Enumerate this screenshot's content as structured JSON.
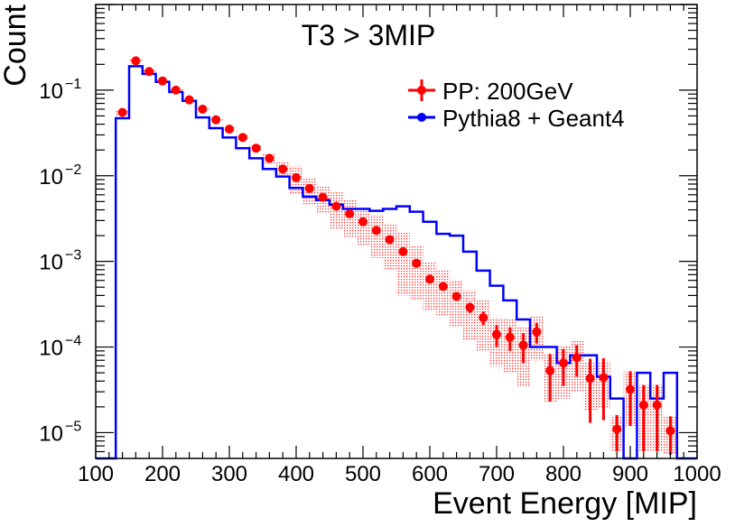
{
  "chart_data": {
    "type": "histogram",
    "title": "T3 > 3MIP",
    "xlabel": "Event Energy [MIP]",
    "ylabel": "Count",
    "xlim": [
      100,
      1000
    ],
    "ylim": [
      5e-06,
      1.0
    ],
    "yscale": "log",
    "x_ticks": [
      "100",
      "200",
      "300",
      "400",
      "500",
      "600",
      "700",
      "800",
      "900",
      "1000"
    ],
    "y_ticks": [
      {
        "value": 1e-05,
        "base": "10",
        "exp": "−5"
      },
      {
        "value": 0.0001,
        "base": "10",
        "exp": "−4"
      },
      {
        "value": 0.001,
        "base": "10",
        "exp": "−3"
      },
      {
        "value": 0.01,
        "base": "10",
        "exp": "−2"
      },
      {
        "value": 0.1,
        "base": "10",
        "exp": "−1"
      }
    ],
    "legend": {
      "position": "top-right",
      "entries": [
        {
          "label": "PP: 200GeV",
          "color": "#ff0000",
          "style": "points"
        },
        {
          "label": "Pythia8 + Geant4",
          "color": "#0000ff",
          "style": "line"
        }
      ]
    },
    "series": [
      {
        "name": "PP: 200GeV",
        "color": "#ff0000",
        "x": [
          140,
          160,
          180,
          200,
          220,
          240,
          260,
          280,
          300,
          320,
          340,
          360,
          380,
          400,
          420,
          440,
          460,
          480,
          500,
          520,
          540,
          560,
          580,
          600,
          620,
          640,
          660,
          680,
          700,
          720,
          740,
          760,
          780,
          800,
          820,
          840,
          860,
          880,
          900,
          920,
          940,
          960
        ],
        "y": [
          0.055,
          0.22,
          0.165,
          0.128,
          0.1,
          0.077,
          0.06,
          0.045,
          0.035,
          0.028,
          0.021,
          0.016,
          0.012,
          0.0095,
          0.0071,
          0.0056,
          0.0044,
          0.0036,
          0.0029,
          0.0023,
          0.0018,
          0.0013,
          0.00095,
          0.00062,
          0.00051,
          0.00039,
          0.00029,
          0.00022,
          0.00014,
          0.00013,
          0.000105,
          0.00015,
          5.3e-05,
          6.5e-05,
          7.5e-05,
          4.3e-05,
          4.4e-05,
          1.1e-05,
          3.2e-05,
          2.1e-05,
          2.1e-05,
          1.05e-05
        ],
        "yerr_low": [
          0.004,
          0.01,
          0.007,
          0.005,
          0.004,
          0.003,
          0.002,
          0.0015,
          0.0012,
          0.001,
          0.0008,
          0.0006,
          0.0005,
          0.0004,
          0.0003,
          0.00025,
          0.0002,
          0.00018,
          0.00015,
          0.00012,
          0.0001,
          9e-05,
          8e-05,
          6e-05,
          5e-05,
          4e-05,
          4e-05,
          4e-05,
          4e-05,
          4e-05,
          4e-05,
          4e-05,
          3e-05,
          3e-05,
          3e-05,
          3e-05,
          3e-05,
          5e-06,
          2e-05,
          1.5e-05,
          1.5e-05,
          5e-06
        ],
        "yerr_high": [
          0.004,
          0.01,
          0.007,
          0.005,
          0.004,
          0.003,
          0.002,
          0.0015,
          0.0012,
          0.001,
          0.0008,
          0.0006,
          0.0005,
          0.0004,
          0.0003,
          0.00025,
          0.0002,
          0.00018,
          0.00015,
          0.00012,
          0.0001,
          9e-05,
          8e-05,
          6e-05,
          5e-05,
          4e-05,
          4e-05,
          4e-05,
          4e-05,
          4e-05,
          4e-05,
          4e-05,
          3e-05,
          3e-05,
          3e-05,
          3e-05,
          3e-05,
          5e-06,
          2e-05,
          1.5e-05,
          1.5e-05,
          5e-06
        ],
        "syst_low": [
          0.004,
          0.01,
          0.007,
          0.005,
          0.004,
          0.003,
          0.002,
          0.002,
          0.002,
          0.002,
          0.002,
          0.002,
          0.0025,
          0.0035,
          0.0025,
          0.002,
          0.002,
          0.0017,
          0.0014,
          0.0012,
          0.001,
          0.0009,
          0.0006,
          0.00035,
          0.00028,
          0.00022,
          0.00017,
          0.00013,
          8e-05,
          8e-05,
          7e-05,
          8e-05,
          3e-05,
          4e-05,
          4.5e-05,
          2.5e-05,
          2.5e-05,
          5e-06,
          2e-05,
          1.5e-05,
          1.5e-05,
          5e-06
        ],
        "syst_high": [
          0.004,
          0.01,
          0.007,
          0.005,
          0.004,
          0.003,
          0.002,
          0.002,
          0.002,
          0.002,
          0.002,
          0.002,
          0.0025,
          0.0035,
          0.0025,
          0.002,
          0.002,
          0.0017,
          0.0014,
          0.0012,
          0.001,
          0.0009,
          0.0006,
          0.00035,
          0.00028,
          0.00022,
          0.00017,
          0.00013,
          8e-05,
          8e-05,
          7e-05,
          8e-05,
          3e-05,
          4e-05,
          4.5e-05,
          2.5e-05,
          2.5e-05,
          5e-06,
          2e-05,
          1.5e-05,
          1.5e-05,
          5e-06
        ]
      },
      {
        "name": "Pythia8 + Geant4",
        "color": "#0000ff",
        "bin_edges": [
          100,
          130,
          150,
          170,
          190,
          210,
          230,
          250,
          270,
          290,
          310,
          330,
          350,
          370,
          390,
          410,
          430,
          450,
          470,
          490,
          510,
          530,
          550,
          570,
          590,
          610,
          630,
          650,
          670,
          690,
          710,
          730,
          750,
          770,
          790,
          810,
          830,
          850,
          870,
          890,
          910,
          930,
          950,
          970,
          1000
        ],
        "values": [
          0,
          0.047,
          0.19,
          0.155,
          0.125,
          0.095,
          0.075,
          0.048,
          0.036,
          0.028,
          0.021,
          0.016,
          0.012,
          0.0098,
          0.0072,
          0.0057,
          0.0052,
          0.0046,
          0.0041,
          0.0041,
          0.0039,
          0.0041,
          0.0044,
          0.0038,
          0.0029,
          0.0021,
          0.002,
          0.0013,
          0.00078,
          0.00052,
          0.00035,
          0.00021,
          0.0001,
          0.0001,
          6.5e-05,
          8e-05,
          8e-05,
          4.5e-05,
          2.5e-05,
          0,
          5e-05,
          2.5e-05,
          5e-05,
          0
        ]
      }
    ]
  }
}
